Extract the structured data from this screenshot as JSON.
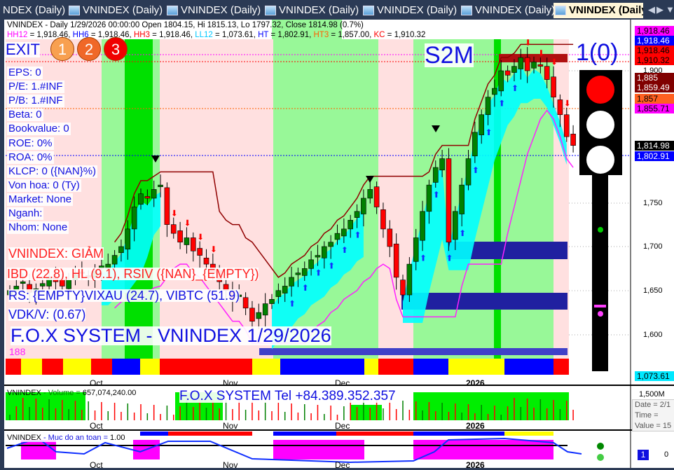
{
  "tabs": [
    {
      "label": "NDEX (Daily)"
    },
    {
      "label": "VNINDEX (Daily)"
    },
    {
      "label": "VNINDEX (Daily)"
    },
    {
      "label": "VNINDEX (Daily)"
    },
    {
      "label": "VNINDEX (Daily)"
    },
    {
      "label": "VNINDEX (Daily)"
    },
    {
      "label": "VNINDEX (Daily)"
    }
  ],
  "header": {
    "line1": "VNINDEX - Daily 1/29/2026 00:00:00 Open 1804.15, Hi 1815.13, Lo 1797.32, Close 1814.98 (0.7%)",
    "ind": [
      {
        "k": "HH12",
        "v": " = 1,918.46, ",
        "c": "#ff00ff"
      },
      {
        "k": "HH6",
        "v": " = 1,918.46, ",
        "c": "#0000ff"
      },
      {
        "k": "HH3",
        "v": " = 1,918.46, ",
        "c": "#ff0000"
      },
      {
        "k": "LL12",
        "v": " = 1,073.61, ",
        "c": "#00c8ff"
      },
      {
        "k": "HT",
        "v": "  = 1,802.91, ",
        "c": "#0000ff"
      },
      {
        "k": "HT3",
        "v": "  = 1,857.00, ",
        "c": "#ff6000"
      },
      {
        "k": "KC",
        "v": " = 1,910.32",
        "c": "#ff0000"
      }
    ]
  },
  "exit": {
    "label": "EXIT",
    "c1": "1",
    "c2": "2",
    "c3": "3"
  },
  "s2m": "S2M",
  "signal": "1(0)",
  "fundamentals": [
    "EPS: 0",
    "P/E: 1.#INF",
    "P/B: 1.#INF",
    "Beta: 0",
    "Bookvalue: 0",
    "ROE: 0%",
    "ROA: 0%",
    "KLCP: 0 ({NAN}%)",
    "Von hoa: 0 (Ty)",
    "Market: None",
    "Nganh:",
    "Nhom: None"
  ],
  "status": {
    "trend": "VNINDEX: GIẢM",
    "ibd": "IBD (22.8), HL (9.1), RSIV ({NAN}_{EMPTY})",
    "rs": "RS: {EMPTY}VIXAU (24.7), VIBTC (51.9)",
    "vdk": "VDK/V:  (0.67)",
    "title": "F.O.X SYSTEM - VNINDEX 1/29/2026",
    "count": "188"
  },
  "price_axis": {
    "ticks": [
      "1,900",
      "1,750",
      "1,700",
      "1,650",
      "1,600"
    ],
    "labels": [
      {
        "v": "1,918.46",
        "bg": "#ff00ff",
        "fg": "#000"
      },
      {
        "v": "1,918.46",
        "bg": "#0000ff",
        "fg": "#fff"
      },
      {
        "v": "1,918.46",
        "bg": "#ff0000",
        "fg": "#000"
      },
      {
        "v": "1,910.32",
        "bg": "#ff0000",
        "fg": "#000"
      },
      {
        "v": "1,885",
        "bg": "#800000",
        "fg": "#fff"
      },
      {
        "v": "1,859.49",
        "bg": "#800000",
        "fg": "#fff"
      },
      {
        "v": "1,857",
        "bg": "#ff6020",
        "fg": "#000"
      },
      {
        "v": "1,855.71",
        "bg": "#ff00ff",
        "fg": "#000"
      },
      {
        "v": "1,814.98",
        "bg": "#000000",
        "fg": "#fff"
      },
      {
        "v": "1,802.91",
        "bg": "#0000ff",
        "fg": "#fff"
      }
    ],
    "ll12": "1,073.61"
  },
  "months": [
    "Oct",
    "Nov",
    "Dec",
    "2026"
  ],
  "volume": {
    "name": "VNINDEX",
    "label": " - Volume = ",
    "value": "657,074,240.00",
    "banner": "F.O.X SYSTEM Tel +84.389.352.357",
    "axis": "1,500M"
  },
  "tooltip": {
    "date": "Date = 2/1",
    "time": "Time =",
    "value": "Value = 15"
  },
  "safety": {
    "name": "VNINDEX",
    "label": " - Muc do an toan = ",
    "value": "1.00",
    "marker": "1",
    "axis": "0"
  },
  "colors": {
    "up": "#008000",
    "down": "#ff0000",
    "lightgreen": "#98f898",
    "brightgreen": "#00e000",
    "pink": "#ffe0e0",
    "cyan": "#00ffff"
  },
  "chart_data": {
    "type": "candlestick",
    "symbol": "VNINDEX",
    "interval": "Daily",
    "ylim": [
      1580,
      1930
    ],
    "last": {
      "open": 1804.15,
      "high": 1815.13,
      "low": 1797.32,
      "close": 1814.98
    },
    "closes": [
      1650,
      1655,
      1660,
      1648,
      1652,
      1658,
      1665,
      1660,
      1655,
      1662,
      1668,
      1670,
      1665,
      1672,
      1678,
      1680,
      1690,
      1700,
      1720,
      1745,
      1760,
      1755,
      1765,
      1770,
      1725,
      1715,
      1705,
      1710,
      1695,
      1690,
      1680,
      1670,
      1660,
      1650,
      1640,
      1645,
      1630,
      1615,
      1625,
      1635,
      1640,
      1650,
      1655,
      1665,
      1670,
      1675,
      1685,
      1690,
      1700,
      1705,
      1715,
      1720,
      1730,
      1740,
      1755,
      1765,
      1745,
      1720,
      1700,
      1665,
      1645,
      1680,
      1710,
      1740,
      1770,
      1790,
      1800,
      1705,
      1740,
      1770,
      1800,
      1830,
      1850,
      1870,
      1880,
      1900,
      1895,
      1905,
      1915,
      1900,
      1910,
      1905,
      1890,
      1870,
      1850,
      1825,
      1815
    ]
  }
}
